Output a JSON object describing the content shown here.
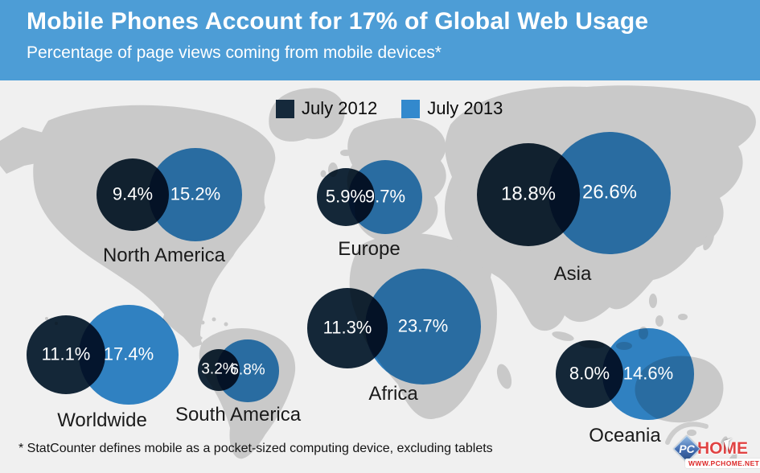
{
  "header": {
    "title": "Mobile Phones Account for 17% of Global Web Usage",
    "subtitle": "Percentage of page views coming from mobile devices*"
  },
  "legend": {
    "items": [
      {
        "label": "July 2012",
        "color": "#15293b"
      },
      {
        "label": "July 2013",
        "color": "#3389cd"
      }
    ]
  },
  "footnote": "* StatCounter defines mobile as a pocket-sized computing device, excluding tablets",
  "watermark": {
    "pc": "PC",
    "home": "HOME",
    "url": "WWW.PCHOME.NET"
  },
  "colors": {
    "banner": "#4d9dd6",
    "dark": "#15293b",
    "blue": "#3389cd",
    "map_land": "#c9c9c9",
    "map_bg": "#f0f0f0",
    "pct_text": "#ffffff",
    "label_text": "#1a1a1a"
  },
  "chart_data": {
    "type": "bubble",
    "title": "Mobile Phones Account for 17% of Global Web Usage",
    "subtitle": "Percentage of page views coming from mobile devices*",
    "unit": "%",
    "legend_position": "top-center",
    "categories": [
      "Worldwide",
      "North America",
      "South America",
      "Europe",
      "Africa",
      "Asia",
      "Oceania"
    ],
    "series": [
      {
        "name": "July 2012",
        "values": [
          11.1,
          9.4,
          3.2,
          5.9,
          11.3,
          18.8,
          8.0
        ]
      },
      {
        "name": "July 2013",
        "values": [
          17.4,
          15.2,
          6.8,
          9.7,
          23.7,
          26.6,
          14.6
        ]
      }
    ],
    "note": "Bubble area is proportional to percentage; pairs of overlapping circles drawn over a gray world map",
    "layout": {
      "radius_scale": 14.8,
      "regions": [
        {
          "name": "Worldwide",
          "c2012": [
            82,
            441
          ],
          "c2013": [
            160,
            441
          ],
          "label": [
            127,
            523
          ],
          "pct_size": 22
        },
        {
          "name": "North America",
          "c2012": [
            165,
            242
          ],
          "c2013": [
            243,
            242
          ],
          "label": [
            204,
            318
          ],
          "pct_size": 22
        },
        {
          "name": "South America",
          "c2012": [
            272,
            460
          ],
          "c2013": [
            308,
            461
          ],
          "label": [
            296,
            516
          ],
          "pct_size": 19
        },
        {
          "name": "Europe",
          "c2012": [
            430,
            245
          ],
          "c2013": [
            479,
            245
          ],
          "label": [
            459,
            310
          ],
          "pct_size": 22
        },
        {
          "name": "Africa",
          "c2012": [
            432,
            408
          ],
          "c2013": [
            526,
            406
          ],
          "label": [
            489,
            490
          ],
          "pct_size": 22
        },
        {
          "name": "Asia",
          "c2012": [
            657,
            242
          ],
          "c2013": [
            758,
            240
          ],
          "label": [
            712,
            341
          ],
          "pct_size": 24
        },
        {
          "name": "Oceania",
          "c2012": [
            733,
            465
          ],
          "c2013": [
            806,
            465
          ],
          "label": [
            777,
            542
          ],
          "pct_size": 22
        }
      ]
    }
  }
}
